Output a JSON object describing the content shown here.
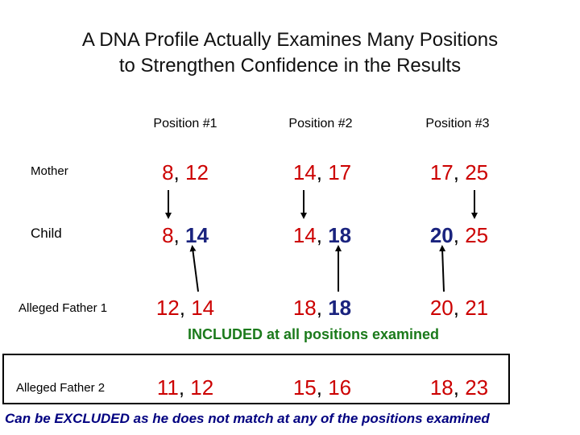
{
  "title_line1": "A DNA Profile Actually Examines Many Positions",
  "title_line2": "to Strengthen Confidence in the Results",
  "positions": [
    "Position #1",
    "Position #2",
    "Position #3"
  ],
  "rows": {
    "mother": {
      "label": "Mother",
      "cells": [
        {
          "a": "8",
          "b": "12"
        },
        {
          "a": "14",
          "b": "17"
        },
        {
          "a": "17",
          "b": "25"
        }
      ]
    },
    "child": {
      "label": "Child",
      "cells": [
        {
          "a": "8",
          "b": "14"
        },
        {
          "a": "14",
          "b": "18"
        },
        {
          "a": "20",
          "b": "25"
        }
      ]
    },
    "father1": {
      "label": "Alleged Father 1",
      "cells": [
        {
          "a": "12",
          "b": "14"
        },
        {
          "a": "18",
          "b": "18"
        },
        {
          "a": "20",
          "b": "21"
        }
      ]
    },
    "father2": {
      "label": "Alleged Father 2",
      "cells": [
        {
          "a": "11",
          "b": "12"
        },
        {
          "a": "15",
          "b": "16"
        },
        {
          "a": "18",
          "b": "23"
        }
      ]
    }
  },
  "included_text": "INCLUDED at all positions examined",
  "excluded_text": "Can be EXCLUDED as he does not match at any of the positions examined",
  "colors": {
    "allele_default": "#cc0000",
    "allele_paternal": "#1a237e",
    "included": "#1b7a1b",
    "excluded": "#000080"
  }
}
